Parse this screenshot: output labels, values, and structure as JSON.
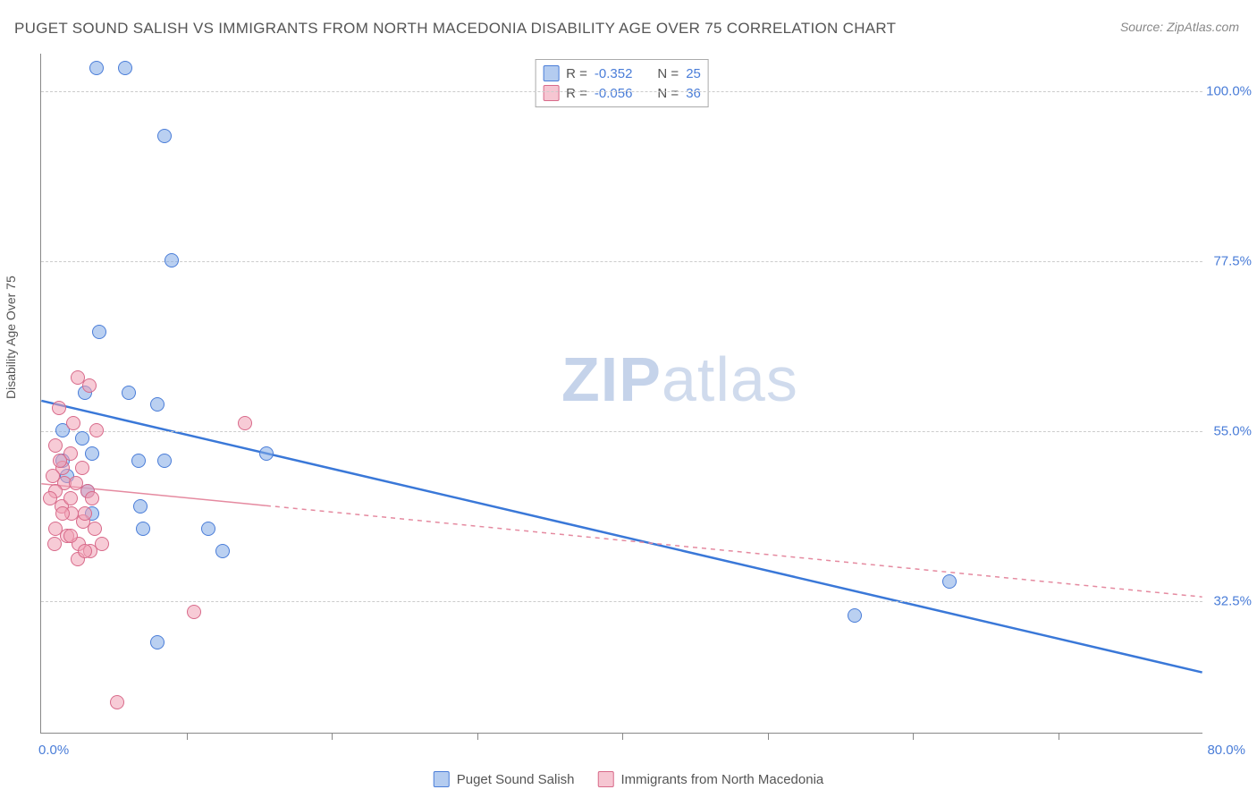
{
  "title": "PUGET SOUND SALISH VS IMMIGRANTS FROM NORTH MACEDONIA DISABILITY AGE OVER 75 CORRELATION CHART",
  "source": "Source: ZipAtlas.com",
  "watermark_bold": "ZIP",
  "watermark_rest": "atlas",
  "ylabel": "Disability Age Over 75",
  "chart": {
    "type": "scatter",
    "background_color": "#ffffff",
    "grid_color": "#cccccc",
    "axis_color": "#888888",
    "label_fontsize": 14,
    "tick_fontsize": 15,
    "tick_color": "#4a7dd8",
    "xlim": [
      0,
      80
    ],
    "ylim": [
      15,
      105
    ],
    "y_ticks": [
      32.5,
      55.0,
      77.5,
      100.0
    ],
    "y_tick_labels": [
      "32.5%",
      "55.0%",
      "77.5%",
      "100.0%"
    ],
    "x_tick_minor": [
      10,
      20,
      30,
      40,
      50,
      60,
      70
    ],
    "x_min_label": "0.0%",
    "x_max_label": "80.0%",
    "marker_size": 16,
    "series": [
      {
        "key": "blue",
        "name": "Puget Sound Salish",
        "fill": "rgba(130,170,230,0.55)",
        "stroke": "#4a7dd8",
        "R": "-0.352",
        "N": "25",
        "trend": {
          "x1": 0,
          "y1": 59,
          "x2": 80,
          "y2": 23,
          "color": "#3a78d8",
          "width": 2.5,
          "dash": "none",
          "solid_to_x": 80
        },
        "points": [
          [
            3.8,
            103
          ],
          [
            5.8,
            103
          ],
          [
            8.5,
            94
          ],
          [
            9.0,
            77.5
          ],
          [
            4.0,
            68
          ],
          [
            6.0,
            60
          ],
          [
            8.0,
            58.5
          ],
          [
            1.5,
            55
          ],
          [
            2.8,
            54
          ],
          [
            3.5,
            52
          ],
          [
            6.7,
            51
          ],
          [
            8.5,
            51
          ],
          [
            15.5,
            52
          ],
          [
            1.8,
            49
          ],
          [
            3.2,
            47
          ],
          [
            6.8,
            45
          ],
          [
            3.5,
            44
          ],
          [
            7.0,
            42
          ],
          [
            11.5,
            42
          ],
          [
            12.5,
            39
          ],
          [
            1.5,
            51
          ],
          [
            8.0,
            27
          ],
          [
            62.5,
            35
          ],
          [
            56.0,
            30.5
          ],
          [
            3.0,
            60
          ]
        ]
      },
      {
        "key": "pink",
        "name": "Immigrants from North Macedonia",
        "fill": "rgba(240,160,180,0.55)",
        "stroke": "#d86a8a",
        "R": "-0.056",
        "N": "36",
        "trend": {
          "x1": 0,
          "y1": 48,
          "x2": 80,
          "y2": 33,
          "color": "#e58aa0",
          "width": 1.5,
          "dash": "5,5",
          "solid_to_x": 15.5
        },
        "points": [
          [
            2.5,
            62
          ],
          [
            3.3,
            61
          ],
          [
            1.2,
            58
          ],
          [
            2.2,
            56
          ],
          [
            3.8,
            55
          ],
          [
            14.0,
            56
          ],
          [
            1.0,
            53
          ],
          [
            2.0,
            52
          ],
          [
            2.8,
            50
          ],
          [
            1.5,
            50
          ],
          [
            0.8,
            49
          ],
          [
            1.6,
            48
          ],
          [
            2.4,
            48
          ],
          [
            3.2,
            47
          ],
          [
            1.0,
            47
          ],
          [
            0.6,
            46
          ],
          [
            1.4,
            45
          ],
          [
            2.1,
            44
          ],
          [
            2.9,
            43
          ],
          [
            3.7,
            42
          ],
          [
            1.0,
            42
          ],
          [
            1.8,
            41
          ],
          [
            2.6,
            40
          ],
          [
            3.4,
            39
          ],
          [
            4.2,
            40
          ],
          [
            0.9,
            40
          ],
          [
            3.0,
            44
          ],
          [
            2.0,
            46
          ],
          [
            1.3,
            51
          ],
          [
            2.5,
            38
          ],
          [
            3.0,
            39
          ],
          [
            2.0,
            41
          ],
          [
            10.5,
            31
          ],
          [
            5.2,
            19
          ],
          [
            3.5,
            46
          ],
          [
            1.5,
            44
          ]
        ]
      }
    ],
    "legend_top": {
      "R_label": "R =",
      "N_label": "N ="
    },
    "legend_bottom": [
      {
        "swatch": "blue",
        "label": "Puget Sound Salish"
      },
      {
        "swatch": "pink",
        "label": "Immigrants from North Macedonia"
      }
    ]
  }
}
